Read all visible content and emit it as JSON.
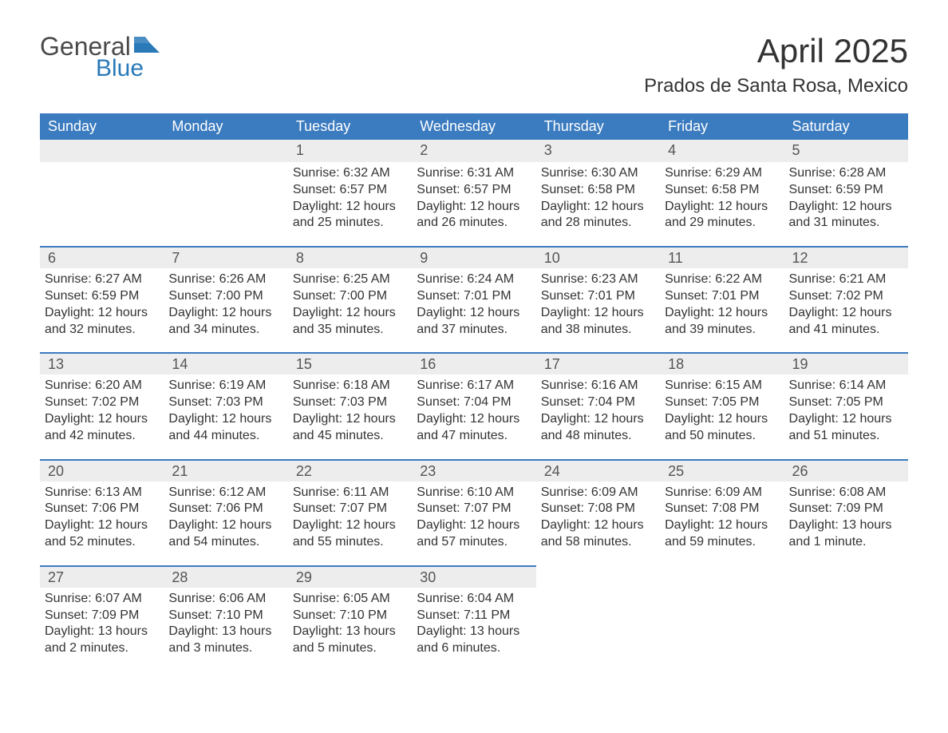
{
  "brand": {
    "text1": "General",
    "text2": "Blue",
    "flag_color": "#2a7ab8"
  },
  "title": "April 2025",
  "location": "Prados de Santa Rosa, Mexico",
  "colors": {
    "header_bg": "#3b7bbf",
    "header_text": "#ffffff",
    "daynum_bg": "#ededed",
    "daynum_border": "#3b7bbf",
    "body_bg": "#ffffff",
    "text": "#333333"
  },
  "day_headers": [
    "Sunday",
    "Monday",
    "Tuesday",
    "Wednesday",
    "Thursday",
    "Friday",
    "Saturday"
  ],
  "weeks": [
    [
      {
        "num": "",
        "lines": []
      },
      {
        "num": "",
        "lines": []
      },
      {
        "num": "1",
        "lines": [
          "Sunrise: 6:32 AM",
          "Sunset: 6:57 PM",
          "Daylight: 12 hours",
          "and 25 minutes."
        ]
      },
      {
        "num": "2",
        "lines": [
          "Sunrise: 6:31 AM",
          "Sunset: 6:57 PM",
          "Daylight: 12 hours",
          "and 26 minutes."
        ]
      },
      {
        "num": "3",
        "lines": [
          "Sunrise: 6:30 AM",
          "Sunset: 6:58 PM",
          "Daylight: 12 hours",
          "and 28 minutes."
        ]
      },
      {
        "num": "4",
        "lines": [
          "Sunrise: 6:29 AM",
          "Sunset: 6:58 PM",
          "Daylight: 12 hours",
          "and 29 minutes."
        ]
      },
      {
        "num": "5",
        "lines": [
          "Sunrise: 6:28 AM",
          "Sunset: 6:59 PM",
          "Daylight: 12 hours",
          "and 31 minutes."
        ]
      }
    ],
    [
      {
        "num": "6",
        "lines": [
          "Sunrise: 6:27 AM",
          "Sunset: 6:59 PM",
          "Daylight: 12 hours",
          "and 32 minutes."
        ]
      },
      {
        "num": "7",
        "lines": [
          "Sunrise: 6:26 AM",
          "Sunset: 7:00 PM",
          "Daylight: 12 hours",
          "and 34 minutes."
        ]
      },
      {
        "num": "8",
        "lines": [
          "Sunrise: 6:25 AM",
          "Sunset: 7:00 PM",
          "Daylight: 12 hours",
          "and 35 minutes."
        ]
      },
      {
        "num": "9",
        "lines": [
          "Sunrise: 6:24 AM",
          "Sunset: 7:01 PM",
          "Daylight: 12 hours",
          "and 37 minutes."
        ]
      },
      {
        "num": "10",
        "lines": [
          "Sunrise: 6:23 AM",
          "Sunset: 7:01 PM",
          "Daylight: 12 hours",
          "and 38 minutes."
        ]
      },
      {
        "num": "11",
        "lines": [
          "Sunrise: 6:22 AM",
          "Sunset: 7:01 PM",
          "Daylight: 12 hours",
          "and 39 minutes."
        ]
      },
      {
        "num": "12",
        "lines": [
          "Sunrise: 6:21 AM",
          "Sunset: 7:02 PM",
          "Daylight: 12 hours",
          "and 41 minutes."
        ]
      }
    ],
    [
      {
        "num": "13",
        "lines": [
          "Sunrise: 6:20 AM",
          "Sunset: 7:02 PM",
          "Daylight: 12 hours",
          "and 42 minutes."
        ]
      },
      {
        "num": "14",
        "lines": [
          "Sunrise: 6:19 AM",
          "Sunset: 7:03 PM",
          "Daylight: 12 hours",
          "and 44 minutes."
        ]
      },
      {
        "num": "15",
        "lines": [
          "Sunrise: 6:18 AM",
          "Sunset: 7:03 PM",
          "Daylight: 12 hours",
          "and 45 minutes."
        ]
      },
      {
        "num": "16",
        "lines": [
          "Sunrise: 6:17 AM",
          "Sunset: 7:04 PM",
          "Daylight: 12 hours",
          "and 47 minutes."
        ]
      },
      {
        "num": "17",
        "lines": [
          "Sunrise: 6:16 AM",
          "Sunset: 7:04 PM",
          "Daylight: 12 hours",
          "and 48 minutes."
        ]
      },
      {
        "num": "18",
        "lines": [
          "Sunrise: 6:15 AM",
          "Sunset: 7:05 PM",
          "Daylight: 12 hours",
          "and 50 minutes."
        ]
      },
      {
        "num": "19",
        "lines": [
          "Sunrise: 6:14 AM",
          "Sunset: 7:05 PM",
          "Daylight: 12 hours",
          "and 51 minutes."
        ]
      }
    ],
    [
      {
        "num": "20",
        "lines": [
          "Sunrise: 6:13 AM",
          "Sunset: 7:06 PM",
          "Daylight: 12 hours",
          "and 52 minutes."
        ]
      },
      {
        "num": "21",
        "lines": [
          "Sunrise: 6:12 AM",
          "Sunset: 7:06 PM",
          "Daylight: 12 hours",
          "and 54 minutes."
        ]
      },
      {
        "num": "22",
        "lines": [
          "Sunrise: 6:11 AM",
          "Sunset: 7:07 PM",
          "Daylight: 12 hours",
          "and 55 minutes."
        ]
      },
      {
        "num": "23",
        "lines": [
          "Sunrise: 6:10 AM",
          "Sunset: 7:07 PM",
          "Daylight: 12 hours",
          "and 57 minutes."
        ]
      },
      {
        "num": "24",
        "lines": [
          "Sunrise: 6:09 AM",
          "Sunset: 7:08 PM",
          "Daylight: 12 hours",
          "and 58 minutes."
        ]
      },
      {
        "num": "25",
        "lines": [
          "Sunrise: 6:09 AM",
          "Sunset: 7:08 PM",
          "Daylight: 12 hours",
          "and 59 minutes."
        ]
      },
      {
        "num": "26",
        "lines": [
          "Sunrise: 6:08 AM",
          "Sunset: 7:09 PM",
          "Daylight: 13 hours",
          "and 1 minute."
        ]
      }
    ],
    [
      {
        "num": "27",
        "lines": [
          "Sunrise: 6:07 AM",
          "Sunset: 7:09 PM",
          "Daylight: 13 hours",
          "and 2 minutes."
        ]
      },
      {
        "num": "28",
        "lines": [
          "Sunrise: 6:06 AM",
          "Sunset: 7:10 PM",
          "Daylight: 13 hours",
          "and 3 minutes."
        ]
      },
      {
        "num": "29",
        "lines": [
          "Sunrise: 6:05 AM",
          "Sunset: 7:10 PM",
          "Daylight: 13 hours",
          "and 5 minutes."
        ]
      },
      {
        "num": "30",
        "lines": [
          "Sunrise: 6:04 AM",
          "Sunset: 7:11 PM",
          "Daylight: 13 hours",
          "and 6 minutes."
        ]
      },
      {
        "num": "",
        "lines": []
      },
      {
        "num": "",
        "lines": []
      },
      {
        "num": "",
        "lines": []
      }
    ]
  ]
}
